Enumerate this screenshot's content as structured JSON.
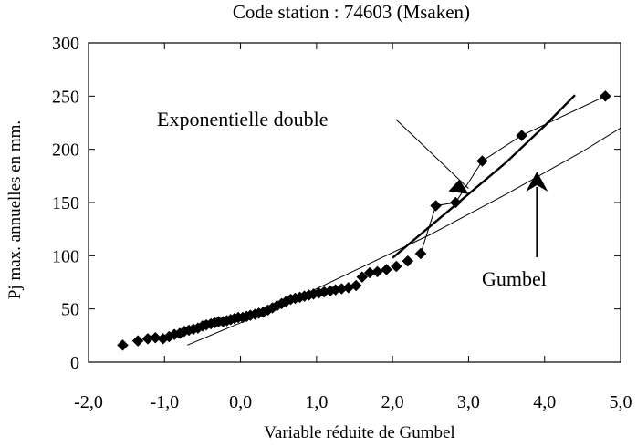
{
  "chart_data": {
    "type": "scatter",
    "title": "Code station : 74603 (Msaken)",
    "xlabel": "Variable réduite de Gumbel",
    "ylabel": "Pj max. annuelles en mm.",
    "xlim": [
      -2.0,
      5.0
    ],
    "ylim": [
      0,
      300
    ],
    "x_ticks": [
      -2.0,
      -1.0,
      0.0,
      1.0,
      2.0,
      3.0,
      4.0,
      5.0
    ],
    "x_tick_labels": [
      "-2,0",
      "-1,0",
      "0,0",
      "1,0",
      "2,0",
      "3,0",
      "4,0",
      "5,0"
    ],
    "y_ticks": [
      0,
      50,
      100,
      150,
      200,
      250,
      300
    ],
    "y_tick_labels": [
      "0",
      "50",
      "100",
      "150",
      "200",
      "250",
      "300"
    ],
    "grid": false,
    "series": [
      {
        "role": "observed",
        "marker": "diamond",
        "x": [
          -1.55,
          -1.35,
          -1.22,
          -1.12,
          -1.02,
          -0.94,
          -0.87,
          -0.8,
          -0.74,
          -0.68,
          -0.62,
          -0.56,
          -0.5,
          -0.45,
          -0.39,
          -0.34,
          -0.29,
          -0.23,
          -0.18,
          -0.13,
          -0.08,
          -0.03,
          0.03,
          0.08,
          0.13,
          0.19,
          0.24,
          0.3,
          0.36,
          0.42,
          0.48,
          0.54,
          0.6,
          0.66,
          0.72,
          0.78,
          0.84,
          0.9,
          0.96,
          1.03,
          1.1,
          1.18,
          1.25,
          1.33,
          1.42,
          1.52,
          1.6,
          1.7,
          1.8,
          1.92,
          2.05,
          2.2,
          2.37,
          2.57,
          2.83,
          3.18,
          3.7,
          4.8
        ],
        "y": [
          16,
          20,
          22,
          23,
          22,
          24,
          26,
          27,
          29,
          30,
          31,
          32,
          34,
          35,
          36,
          37,
          38,
          38,
          39,
          40,
          41,
          42,
          42,
          43,
          44,
          45,
          46,
          47,
          49,
          51,
          53,
          55,
          57,
          59,
          60,
          61,
          62,
          63,
          64,
          65,
          66,
          67,
          68,
          69,
          70,
          72,
          80,
          84,
          85,
          87,
          90,
          95,
          102,
          147,
          150,
          189,
          213,
          250
        ]
      },
      {
        "role": "observed-polyline",
        "x": [
          2.37,
          2.57,
          2.83,
          3.18,
          3.7,
          4.8
        ],
        "y": [
          102,
          147,
          150,
          189,
          213,
          250
        ]
      },
      {
        "role": "exponentielle-double-fit",
        "x": [
          2.0,
          2.5,
          3.0,
          3.5,
          4.0,
          4.4
        ],
        "y": [
          98,
          128,
          158,
          188,
          222,
          251
        ]
      },
      {
        "role": "gumbel-fit",
        "x": [
          -0.7,
          0.5,
          1.5,
          2.5,
          3.5,
          4.5,
          5.0
        ],
        "y": [
          16,
          52,
          86,
          120,
          158,
          198,
          220
        ]
      }
    ],
    "annotations": [
      {
        "text": "Exponentielle double",
        "points_to": "exponentielle-double-fit"
      },
      {
        "text": "Gumbel",
        "points_to": "gumbel-fit"
      }
    ]
  }
}
